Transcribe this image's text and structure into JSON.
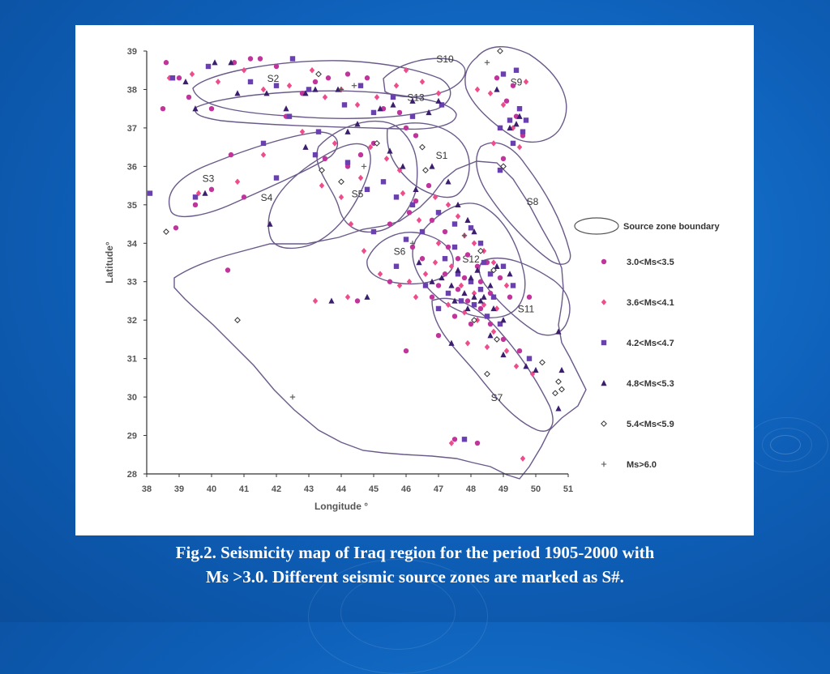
{
  "caption": {
    "line1": "Fig.2. Seismicity map of Iraq region for the period   1905-2000 with",
    "line2": "Ms >3.0. Different seismic source zones are marked as S#."
  },
  "colors": {
    "background": "#0e5fb8",
    "c35": "#c0349b",
    "c41": "#ef4c8c",
    "c47": "#6a3fb0",
    "c53": "#3b1f6e",
    "c59": "#333333",
    "c60": "#555555",
    "zone_line": "#6a5a8a"
  },
  "chart_data": {
    "type": "scatter",
    "title": "",
    "xlabel": "Longitude °",
    "ylabel": "Latitude°",
    "xlim": [
      38,
      51
    ],
    "ylim": [
      28,
      39
    ],
    "x_ticks": [
      "38",
      "39",
      "40",
      "41",
      "42",
      "43",
      "44",
      "45",
      "46",
      "47",
      "48",
      "49",
      "50",
      "51"
    ],
    "y_ticks": [
      "28",
      "29",
      "30",
      "31",
      "32",
      "33",
      "34",
      "35",
      "36",
      "37",
      "38",
      "39"
    ],
    "legend": {
      "boundary_label": "Source zone boundary",
      "placement": "right"
    },
    "zone_labels": [
      "S1",
      "S2",
      "S3",
      "S4",
      "S5",
      "S6",
      "S7",
      "S8",
      "S9",
      "S10",
      "S11",
      "S12",
      "S13"
    ],
    "series": [
      {
        "name": "3.0<Ms<3.5",
        "marker": "circle",
        "color": "#c0349b",
        "points": [
          [
            38.6,
            38.7
          ],
          [
            38.5,
            37.5
          ],
          [
            39.0,
            38.3
          ],
          [
            39.3,
            37.8
          ],
          [
            40.0,
            37.5
          ],
          [
            40.7,
            38.7
          ],
          [
            41.2,
            38.8
          ],
          [
            41.5,
            38.8
          ],
          [
            42.0,
            38.6
          ],
          [
            42.3,
            37.3
          ],
          [
            42.8,
            37.9
          ],
          [
            43.2,
            38.2
          ],
          [
            43.6,
            38.3
          ],
          [
            44.2,
            38.4
          ],
          [
            44.8,
            38.3
          ],
          [
            45.3,
            37.5
          ],
          [
            45.8,
            37.4
          ],
          [
            46.0,
            37.0
          ],
          [
            46.3,
            36.8
          ],
          [
            41.0,
            35.2
          ],
          [
            40.6,
            36.3
          ],
          [
            40.0,
            35.4
          ],
          [
            39.5,
            35.0
          ],
          [
            38.9,
            34.4
          ],
          [
            40.5,
            33.3
          ],
          [
            45.5,
            33.0
          ],
          [
            44.5,
            32.5
          ],
          [
            46.0,
            31.2
          ],
          [
            47.0,
            31.6
          ],
          [
            47.5,
            28.9
          ],
          [
            48.2,
            28.8
          ],
          [
            49.1,
            37.7
          ],
          [
            49.4,
            37.3
          ],
          [
            49.6,
            36.8
          ],
          [
            49.0,
            36.2
          ],
          [
            48.8,
            38.3
          ],
          [
            49.3,
            38.1
          ],
          [
            46.7,
            35.5
          ],
          [
            46.3,
            35.1
          ],
          [
            46.1,
            34.8
          ],
          [
            45.5,
            34.5
          ],
          [
            46.8,
            34.6
          ],
          [
            47.2,
            34.3
          ],
          [
            47.3,
            33.9
          ],
          [
            47.6,
            33.6
          ],
          [
            47.9,
            33.7
          ],
          [
            48.2,
            33.4
          ],
          [
            47.2,
            33.2
          ],
          [
            47.6,
            32.8
          ],
          [
            47.9,
            32.5
          ],
          [
            48.3,
            32.3
          ],
          [
            48.6,
            32.7
          ],
          [
            48.9,
            33.1
          ],
          [
            49.2,
            32.6
          ],
          [
            47.0,
            32.9
          ],
          [
            46.8,
            32.6
          ],
          [
            47.5,
            32.1
          ],
          [
            48.0,
            31.9
          ],
          [
            48.6,
            31.9
          ],
          [
            49.0,
            31.5
          ],
          [
            48.3,
            33.0
          ],
          [
            47.8,
            33.1
          ],
          [
            48.5,
            33.5
          ],
          [
            46.5,
            33.6
          ],
          [
            46.2,
            33.9
          ],
          [
            49.8,
            32.6
          ],
          [
            49.5,
            31.2
          ],
          [
            45.0,
            36.6
          ],
          [
            44.6,
            36.3
          ],
          [
            44.2,
            36.0
          ],
          [
            43.5,
            36.2
          ]
        ]
      },
      {
        "name": "3.6<Ms<4.1",
        "marker": "diamond",
        "color": "#ef4c8c",
        "points": [
          [
            38.7,
            38.3
          ],
          [
            39.4,
            38.4
          ],
          [
            40.2,
            38.2
          ],
          [
            41.0,
            38.5
          ],
          [
            41.6,
            38.0
          ],
          [
            42.4,
            38.1
          ],
          [
            43.1,
            38.5
          ],
          [
            43.5,
            37.8
          ],
          [
            44.0,
            38.0
          ],
          [
            44.5,
            37.6
          ],
          [
            45.1,
            37.8
          ],
          [
            45.7,
            38.1
          ],
          [
            46.0,
            38.5
          ],
          [
            46.5,
            38.2
          ],
          [
            47.0,
            37.9
          ],
          [
            44.9,
            36.5
          ],
          [
            45.4,
            36.2
          ],
          [
            45.8,
            35.9
          ],
          [
            44.6,
            35.7
          ],
          [
            44.0,
            35.2
          ],
          [
            43.4,
            35.5
          ],
          [
            41.6,
            36.3
          ],
          [
            40.8,
            35.6
          ],
          [
            39.6,
            35.3
          ],
          [
            42.8,
            36.9
          ],
          [
            43.8,
            36.6
          ],
          [
            44.3,
            34.5
          ],
          [
            44.7,
            33.8
          ],
          [
            44.2,
            32.6
          ],
          [
            45.9,
            35.3
          ],
          [
            46.4,
            34.6
          ],
          [
            46.9,
            35.2
          ],
          [
            47.3,
            35.0
          ],
          [
            47.6,
            34.7
          ],
          [
            47.8,
            34.2
          ],
          [
            48.1,
            34.0
          ],
          [
            48.4,
            33.8
          ],
          [
            48.7,
            33.5
          ],
          [
            47.0,
            34.0
          ],
          [
            46.6,
            33.2
          ],
          [
            46.9,
            33.5
          ],
          [
            47.4,
            33.4
          ],
          [
            47.7,
            32.9
          ],
          [
            48.1,
            32.7
          ],
          [
            48.4,
            32.4
          ],
          [
            48.8,
            32.3
          ],
          [
            49.1,
            32.9
          ],
          [
            47.3,
            32.4
          ],
          [
            47.8,
            32.2
          ],
          [
            48.2,
            32.0
          ],
          [
            48.7,
            31.7
          ],
          [
            49.1,
            31.2
          ],
          [
            49.4,
            30.8
          ],
          [
            48.5,
            31.3
          ],
          [
            47.9,
            31.4
          ],
          [
            46.1,
            33.0
          ],
          [
            46.3,
            32.6
          ],
          [
            45.8,
            32.9
          ],
          [
            49.3,
            37.0
          ],
          [
            49.0,
            37.6
          ],
          [
            48.6,
            37.9
          ],
          [
            48.2,
            38.0
          ],
          [
            49.7,
            38.2
          ],
          [
            49.5,
            36.5
          ],
          [
            48.7,
            36.6
          ],
          [
            49.9,
            30.6
          ],
          [
            49.6,
            28.4
          ],
          [
            47.4,
            28.8
          ],
          [
            43.2,
            32.5
          ],
          [
            45.2,
            33.2
          ]
        ]
      },
      {
        "name": "4.2<Ms<4.7",
        "marker": "square",
        "color": "#6a3fb0",
        "points": [
          [
            38.1,
            35.3
          ],
          [
            38.8,
            38.3
          ],
          [
            39.9,
            38.6
          ],
          [
            41.2,
            38.2
          ],
          [
            42.0,
            38.1
          ],
          [
            42.5,
            38.8
          ],
          [
            43.0,
            38.0
          ],
          [
            43.3,
            36.9
          ],
          [
            44.1,
            37.6
          ],
          [
            44.6,
            38.1
          ],
          [
            45.0,
            37.4
          ],
          [
            45.6,
            37.8
          ],
          [
            46.2,
            37.3
          ],
          [
            47.1,
            37.6
          ],
          [
            44.8,
            35.4
          ],
          [
            45.3,
            35.6
          ],
          [
            45.7,
            35.2
          ],
          [
            45.0,
            34.3
          ],
          [
            46.0,
            34.1
          ],
          [
            44.2,
            36.1
          ],
          [
            43.2,
            36.3
          ],
          [
            42.0,
            35.7
          ],
          [
            41.6,
            36.6
          ],
          [
            39.5,
            35.2
          ],
          [
            42.4,
            37.3
          ],
          [
            46.2,
            35.0
          ],
          [
            46.5,
            34.3
          ],
          [
            47.0,
            34.8
          ],
          [
            47.5,
            34.5
          ],
          [
            48.0,
            34.4
          ],
          [
            48.3,
            34.0
          ],
          [
            47.2,
            33.6
          ],
          [
            47.6,
            33.2
          ],
          [
            48.0,
            33.0
          ],
          [
            48.3,
            32.8
          ],
          [
            48.6,
            33.2
          ],
          [
            49.0,
            33.4
          ],
          [
            49.3,
            32.9
          ],
          [
            47.3,
            32.7
          ],
          [
            47.7,
            32.5
          ],
          [
            48.1,
            32.4
          ],
          [
            48.5,
            32.1
          ],
          [
            48.9,
            31.9
          ],
          [
            46.6,
            32.9
          ],
          [
            47.0,
            32.3
          ],
          [
            49.8,
            31.0
          ],
          [
            47.8,
            28.9
          ],
          [
            49.2,
            37.2
          ],
          [
            49.5,
            37.5
          ],
          [
            49.6,
            36.9
          ],
          [
            49.3,
            36.6
          ],
          [
            48.9,
            37.0
          ],
          [
            49.7,
            37.2
          ],
          [
            49.0,
            38.4
          ],
          [
            49.4,
            38.5
          ],
          [
            48.9,
            35.9
          ],
          [
            45.7,
            33.4
          ],
          [
            48.4,
            33.5
          ],
          [
            48.7,
            32.6
          ],
          [
            47.5,
            33.9
          ]
        ]
      },
      {
        "name": "4.8<Ms<5.3",
        "marker": "triangle",
        "color": "#3b1f6e",
        "points": [
          [
            39.2,
            38.2
          ],
          [
            39.5,
            37.5
          ],
          [
            40.1,
            38.7
          ],
          [
            40.6,
            38.7
          ],
          [
            40.8,
            37.9
          ],
          [
            41.7,
            37.9
          ],
          [
            42.3,
            37.5
          ],
          [
            42.9,
            37.9
          ],
          [
            43.2,
            38.0
          ],
          [
            43.9,
            38.0
          ],
          [
            44.5,
            37.1
          ],
          [
            45.2,
            37.5
          ],
          [
            45.6,
            37.6
          ],
          [
            46.2,
            37.7
          ],
          [
            46.7,
            37.4
          ],
          [
            47.0,
            37.7
          ],
          [
            45.5,
            36.4
          ],
          [
            45.9,
            36.0
          ],
          [
            46.3,
            35.4
          ],
          [
            41.8,
            34.5
          ],
          [
            39.8,
            35.3
          ],
          [
            42.9,
            36.5
          ],
          [
            44.2,
            36.9
          ],
          [
            46.8,
            36.0
          ],
          [
            47.3,
            35.6
          ],
          [
            47.6,
            35.0
          ],
          [
            47.9,
            34.6
          ],
          [
            48.1,
            34.3
          ],
          [
            46.4,
            33.5
          ],
          [
            46.8,
            33.0
          ],
          [
            47.1,
            33.1
          ],
          [
            47.4,
            32.9
          ],
          [
            47.8,
            32.7
          ],
          [
            48.1,
            32.6
          ],
          [
            48.4,
            32.6
          ],
          [
            48.6,
            32.9
          ],
          [
            48.8,
            33.4
          ],
          [
            49.2,
            33.2
          ],
          [
            47.5,
            32.5
          ],
          [
            47.9,
            32.3
          ],
          [
            48.3,
            32.5
          ],
          [
            48.7,
            32.3
          ],
          [
            49.0,
            32.0
          ],
          [
            48.6,
            31.6
          ],
          [
            49.0,
            31.1
          ],
          [
            49.7,
            30.8
          ],
          [
            50.0,
            30.7
          ],
          [
            50.7,
            31.7
          ],
          [
            50.8,
            30.7
          ],
          [
            50.7,
            29.7
          ],
          [
            43.7,
            32.5
          ],
          [
            44.8,
            32.6
          ],
          [
            49.5,
            37.3
          ],
          [
            49.2,
            37.0
          ],
          [
            48.8,
            38.0
          ],
          [
            49.4,
            37.1
          ],
          [
            47.4,
            31.4
          ],
          [
            48.2,
            33.3
          ],
          [
            48.0,
            33.1
          ],
          [
            47.6,
            33.3
          ]
        ]
      },
      {
        "name": "5.4<Ms<5.9",
        "marker": "open-diamond",
        "color": "#333333",
        "points": [
          [
            38.6,
            34.3
          ],
          [
            40.8,
            32.0
          ],
          [
            43.3,
            38.4
          ],
          [
            45.1,
            36.6
          ],
          [
            46.5,
            36.5
          ],
          [
            43.4,
            35.9
          ],
          [
            44.0,
            35.6
          ],
          [
            48.3,
            33.8
          ],
          [
            48.7,
            33.3
          ],
          [
            48.1,
            32.0
          ],
          [
            48.5,
            30.6
          ],
          [
            49.0,
            36.0
          ],
          [
            48.8,
            31.5
          ],
          [
            50.2,
            30.9
          ],
          [
            50.7,
            30.4
          ],
          [
            50.6,
            30.1
          ],
          [
            50.8,
            30.2
          ],
          [
            48.9,
            39.0
          ],
          [
            46.6,
            35.9
          ]
        ]
      },
      {
        "name": "Ms>6.0",
        "marker": "plus",
        "color": "#555555",
        "points": [
          [
            44.0,
            38.0
          ],
          [
            44.4,
            38.1
          ],
          [
            48.5,
            38.7
          ],
          [
            42.5,
            30.0
          ],
          [
            44.7,
            36.0
          ],
          [
            46.2,
            34.0
          ],
          [
            47.8,
            34.2
          ]
        ]
      }
    ]
  }
}
